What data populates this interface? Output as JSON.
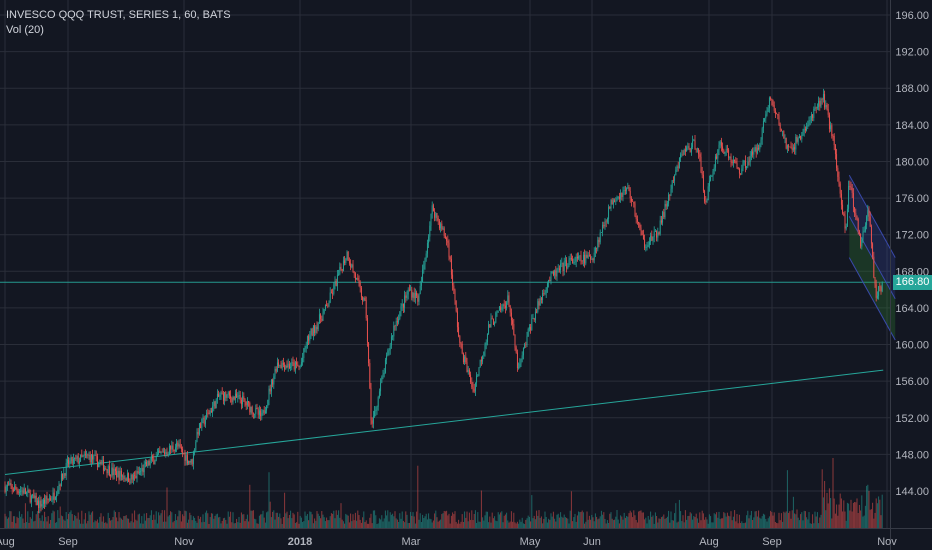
{
  "legend": {
    "title": "INVESCO QQQ TRUST, SERIES 1, 60, BATS",
    "volume": "Vol (20)"
  },
  "last_price_label": "166.80",
  "colors": {
    "background": "#131722",
    "grid": "#2a2e39",
    "up": "#26a69a",
    "down": "#ef5350",
    "trendline": "#26a69a",
    "channel_outer": "#3949ab",
    "channel_inner": "#2e7d32",
    "axis_text": "#b2b5be"
  },
  "chart_data": {
    "type": "candlestick",
    "symbol": "INVESCO QQQ TRUST, SERIES 1",
    "interval": "60",
    "exchange": "BATS",
    "x_axis": {
      "tick_labels": [
        "Aug",
        "Sep",
        "Nov",
        "2018",
        "Mar",
        "May",
        "Jun",
        "Aug",
        "Sep",
        "Nov"
      ],
      "range": [
        "2017-08",
        "2018-11"
      ]
    },
    "y_axis": {
      "side": "right",
      "range": [
        140,
        198
      ],
      "ticks": [
        144,
        148,
        152,
        156,
        160,
        164,
        168,
        172,
        176,
        180,
        184,
        188,
        192,
        196
      ],
      "tick_labels": [
        "144.00",
        "148.00",
        "152.00",
        "156.00",
        "160.00",
        "164.00",
        "168.00",
        "172.00",
        "176.00",
        "180.00",
        "184.00",
        "188.00",
        "192.00",
        "196.00"
      ]
    },
    "grid": true,
    "last_price": 166.8,
    "price_path": [
      [
        "2017-08-01",
        144.5
      ],
      [
        "2017-08-10",
        144.0
      ],
      [
        "2017-08-18",
        142.5
      ],
      [
        "2017-08-25",
        143.5
      ],
      [
        "2017-09-01",
        147.0
      ],
      [
        "2017-09-12",
        147.8
      ],
      [
        "2017-09-25",
        146.0
      ],
      [
        "2017-10-05",
        145.3
      ],
      [
        "2017-10-16",
        147.5
      ],
      [
        "2017-10-28",
        149.0
      ],
      [
        "2017-11-05",
        147.0
      ],
      [
        "2017-11-08",
        150.5
      ],
      [
        "2017-11-20",
        154.5
      ],
      [
        "2017-12-01",
        154.0
      ],
      [
        "2017-12-12",
        152.0
      ],
      [
        "2017-12-20",
        158.0
      ],
      [
        "2018-01-01",
        157.5
      ],
      [
        "2018-01-05",
        160.5
      ],
      [
        "2018-01-15",
        164.0
      ],
      [
        "2018-01-26",
        170.0
      ],
      [
        "2018-02-05",
        164.0
      ],
      [
        "2018-02-08",
        151.0
      ],
      [
        "2018-02-20",
        162.0
      ],
      [
        "2018-02-28",
        166.0
      ],
      [
        "2018-03-05",
        165.0
      ],
      [
        "2018-03-12",
        175.0
      ],
      [
        "2018-03-20",
        171.0
      ],
      [
        "2018-03-26",
        160.0
      ],
      [
        "2018-04-02",
        155.0
      ],
      [
        "2018-04-10",
        162.0
      ],
      [
        "2018-04-20",
        165.0
      ],
      [
        "2018-04-25",
        157.0
      ],
      [
        "2018-05-01",
        162.0
      ],
      [
        "2018-05-10",
        167.0
      ],
      [
        "2018-05-20",
        169.0
      ],
      [
        "2018-06-01",
        169.5
      ],
      [
        "2018-06-12",
        176.0
      ],
      [
        "2018-06-20",
        177.0
      ],
      [
        "2018-06-28",
        171.0
      ],
      [
        "2018-07-05",
        172.0
      ],
      [
        "2018-07-18",
        181.0
      ],
      [
        "2018-07-26",
        182.0
      ],
      [
        "2018-07-30",
        175.5
      ],
      [
        "2018-08-06",
        182.0
      ],
      [
        "2018-08-16",
        179.0
      ],
      [
        "2018-08-25",
        181.5
      ],
      [
        "2018-08-31",
        187.0
      ],
      [
        "2018-09-10",
        181.0
      ],
      [
        "2018-09-20",
        184.0
      ],
      [
        "2018-09-28",
        187.0
      ],
      [
        "2018-10-04",
        182.0
      ],
      [
        "2018-10-10",
        172.0
      ],
      [
        "2018-10-12",
        178.0
      ],
      [
        "2018-10-18",
        171.0
      ],
      [
        "2018-10-22",
        175.0
      ],
      [
        "2018-10-26",
        165.5
      ],
      [
        "2018-10-30",
        166.8
      ]
    ],
    "annotations": {
      "horizontal_line": 166.8,
      "trendline": {
        "from": [
          "2017-08-01",
          145.8
        ],
        "to": [
          "2018-10-30",
          157.2
        ]
      },
      "descending_channel": {
        "from": "2018-10-12",
        "to": "2018-10-30",
        "upper": [
          178.5,
          169.5
        ],
        "middle": [
          174.0,
          165.0
        ],
        "lower": [
          169.5,
          160.5
        ]
      }
    },
    "volume": {
      "label": "Vol (20)"
    }
  }
}
